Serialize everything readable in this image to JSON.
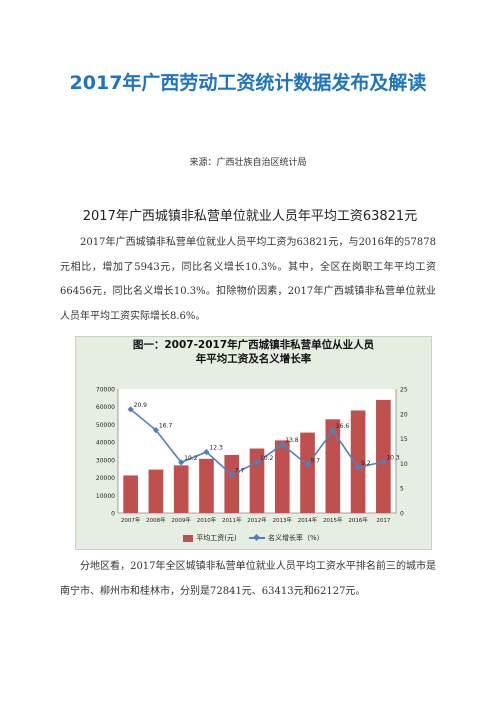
{
  "header": {
    "title": "2017年广西劳动工资统计数据发布及解读",
    "source": "来源：广西壮族自治区统计局"
  },
  "section": {
    "heading": "2017年广西城镇非私营单位就业人员年平均工资63821元",
    "paragraph1": "2017年广西城镇非私营单位就业人员平均工资为63821元，与2016年的57878元相比，增加了5943元，同比名义增长10.3%。其中，全区在岗职工年平均工资66456元，同比名义增长10.3%。扣除物价因素，2017年广西城镇非私营单位就业人员年平均工资实际增长8.6%。",
    "paragraph2": "分地区看，2017年全区城镇非私营单位就业人员平均工资水平排名前三的城市是南宁市、柳州市和桂林市，分别是72841元、63413元和62127元。"
  },
  "chart_data": {
    "type": "bar",
    "title": "图一：2007-2017年广西城镇非私营单位从业人员年平均工资及名义增长率",
    "title_lines": [
      "图一：2007-2017年广西城镇非私营单位从业人员",
      "年平均工资及名义增长率"
    ],
    "categories": [
      "2007年",
      "2008年",
      "2009年",
      "2010年",
      "2011年",
      "2012年",
      "2013年",
      "2014年",
      "2015年",
      "2016年",
      "2017"
    ],
    "series": [
      {
        "name": "平均工资(元)",
        "type": "bar",
        "axis": "left",
        "color": "#c0504d",
        "values": [
          21200,
          24500,
          26900,
          30600,
          32800,
          36400,
          41000,
          45400,
          52900,
          57878,
          63821
        ]
      },
      {
        "name": "名义增长率（%）",
        "type": "line",
        "axis": "right",
        "color": "#4f81bd",
        "values": [
          20.9,
          16.7,
          10.2,
          12.3,
          7.7,
          10.2,
          13.8,
          9.7,
          16.6,
          9.2,
          10.3
        ]
      }
    ],
    "left_axis": {
      "min": 0,
      "max": 70000,
      "ticks": [
        0,
        10000,
        20000,
        30000,
        40000,
        50000,
        60000,
        70000
      ]
    },
    "right_axis": {
      "min": 0,
      "max": 25,
      "ticks": [
        0,
        5,
        10,
        15,
        20,
        25
      ]
    },
    "grid": false,
    "legend": "bottom"
  }
}
